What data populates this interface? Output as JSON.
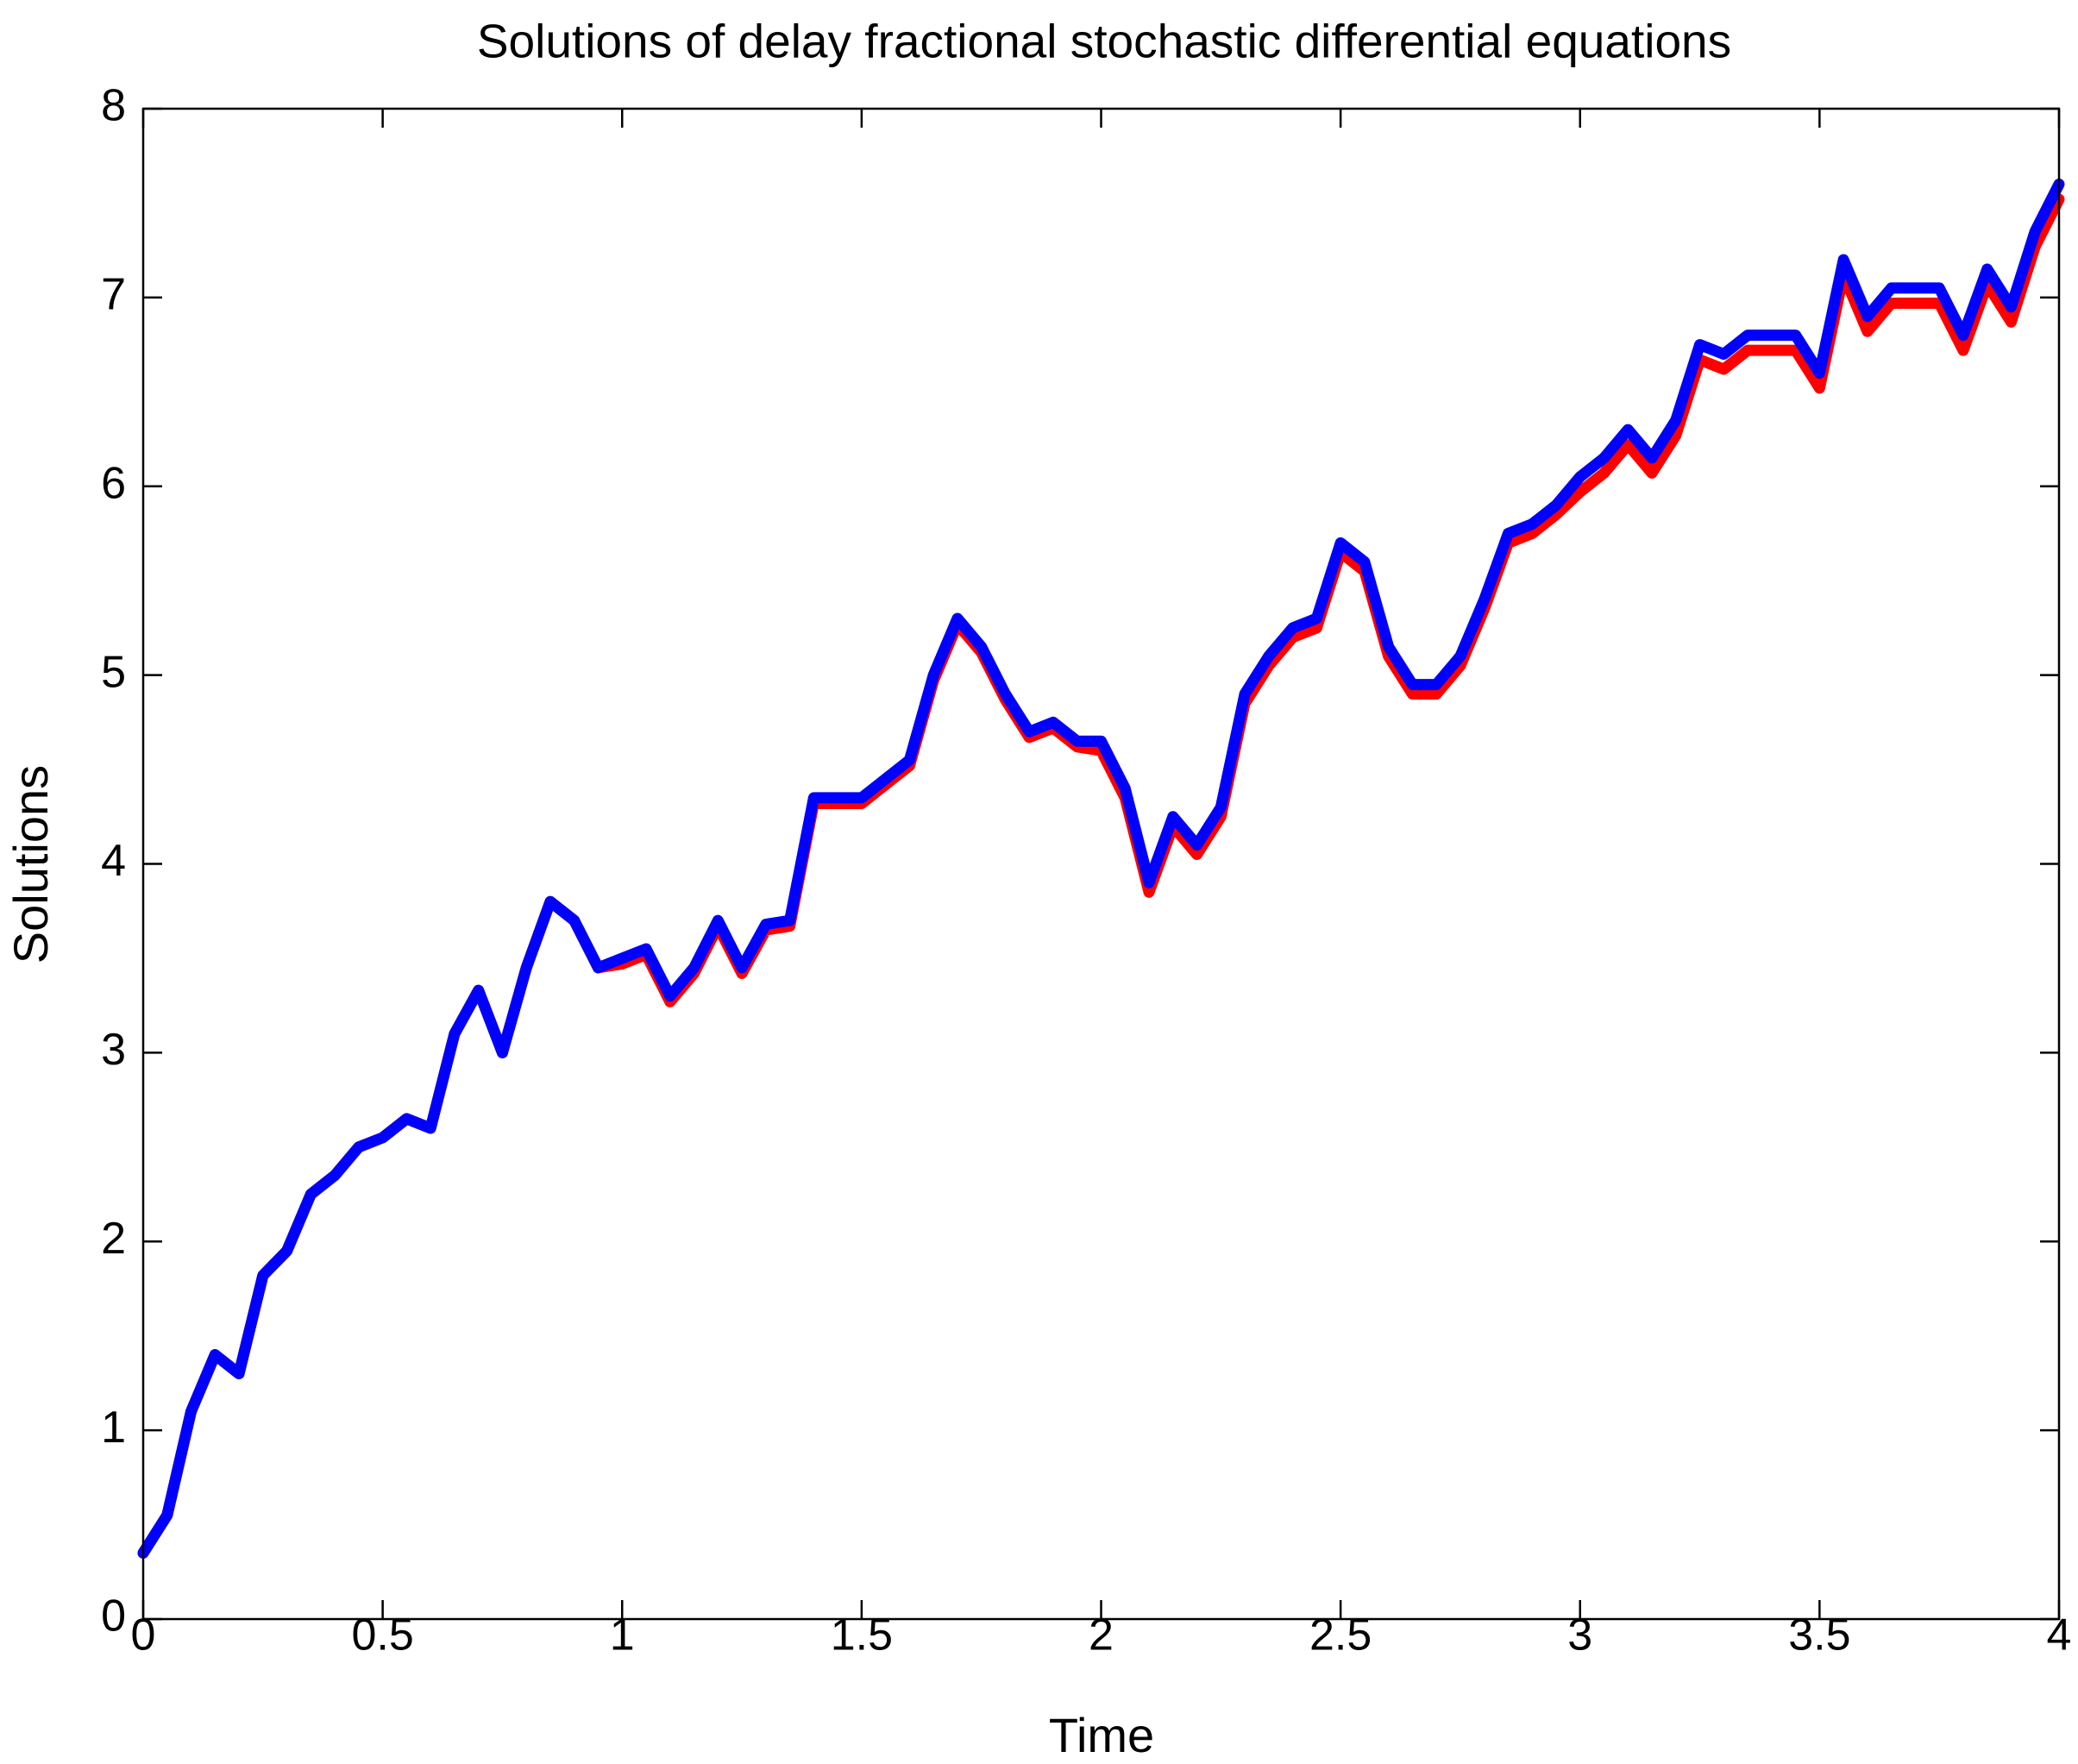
{
  "chart_data": {
    "type": "line",
    "title": "Solutions of delay fractional stochastic differential equations",
    "x_label": "Time",
    "y_label": "Solutions",
    "xlim": [
      0,
      4
    ],
    "ylim": [
      0,
      8
    ],
    "xticks": [
      0,
      0.5,
      1,
      1.5,
      2,
      2.5,
      3,
      3.5,
      4
    ],
    "yticks": [
      0,
      1,
      2,
      3,
      4,
      5,
      6,
      7,
      8
    ],
    "x": [
      0,
      0.05,
      0.1,
      0.15,
      0.2,
      0.25,
      0.3,
      0.35,
      0.4,
      0.45,
      0.5,
      0.55,
      0.6,
      0.65,
      0.7,
      0.75,
      0.8,
      0.85,
      0.9,
      0.95,
      1,
      1.05,
      1.1,
      1.15,
      1.2,
      1.25,
      1.3,
      1.35,
      1.4,
      1.45,
      1.5,
      1.55,
      1.6,
      1.65,
      1.7,
      1.75,
      1.8,
      1.85,
      1.9,
      1.95,
      2,
      2.05,
      2.1,
      2.15,
      2.2,
      2.25,
      2.3,
      2.35,
      2.4,
      2.45,
      2.5,
      2.55,
      2.6,
      2.65,
      2.7,
      2.75,
      2.8,
      2.85,
      2.9,
      2.95,
      3,
      3.05,
      3.1,
      3.15,
      3.2,
      3.25,
      3.3,
      3.35,
      3.4,
      3.45,
      3.5,
      3.55,
      3.6,
      3.65,
      3.7,
      3.75,
      3.8,
      3.85,
      3.9,
      3.95,
      4
    ],
    "series": [
      {
        "color": "#ff0000",
        "values": [
          0.35,
          0.55,
          1.1,
          1.4,
          1.3,
          1.82,
          1.95,
          2.25,
          2.35,
          2.5,
          2.55,
          2.65,
          2.6,
          3.1,
          3.33,
          3.0,
          3.45,
          3.8,
          3.7,
          3.45,
          3.47,
          3.52,
          3.27,
          3.42,
          3.67,
          3.42,
          3.65,
          3.67,
          4.32,
          4.32,
          4.32,
          4.42,
          4.52,
          4.97,
          5.27,
          5.12,
          4.87,
          4.67,
          4.72,
          4.62,
          4.6,
          4.35,
          3.85,
          4.2,
          4.05,
          4.25,
          4.85,
          5.05,
          5.2,
          5.25,
          5.65,
          5.55,
          5.1,
          4.9,
          4.9,
          5.05,
          5.35,
          5.7,
          5.75,
          5.85,
          5.97,
          6.07,
          6.22,
          6.07,
          6.27,
          6.67,
          6.62,
          6.72,
          6.72,
          6.72,
          6.52,
          7.12,
          6.82,
          6.97,
          6.97,
          6.97,
          6.72,
          7.07,
          6.87,
          7.27,
          7.52
        ]
      },
      {
        "color": "#0000ff",
        "values": [
          0.35,
          0.55,
          1.1,
          1.4,
          1.3,
          1.82,
          1.95,
          2.25,
          2.35,
          2.5,
          2.55,
          2.65,
          2.6,
          3.1,
          3.33,
          3.0,
          3.45,
          3.8,
          3.7,
          3.45,
          3.5,
          3.55,
          3.3,
          3.45,
          3.7,
          3.45,
          3.68,
          3.7,
          4.35,
          4.35,
          4.35,
          4.45,
          4.55,
          5.0,
          5.3,
          5.15,
          4.9,
          4.7,
          4.75,
          4.65,
          4.65,
          4.4,
          3.9,
          4.25,
          4.1,
          4.3,
          4.9,
          5.1,
          5.25,
          5.3,
          5.7,
          5.6,
          5.15,
          4.95,
          4.95,
          5.1,
          5.4,
          5.75,
          5.8,
          5.9,
          6.05,
          6.15,
          6.3,
          6.15,
          6.35,
          6.75,
          6.7,
          6.8,
          6.8,
          6.8,
          6.6,
          7.2,
          6.9,
          7.05,
          7.05,
          7.05,
          6.8,
          7.15,
          6.95,
          7.35,
          7.6
        ]
      }
    ]
  }
}
